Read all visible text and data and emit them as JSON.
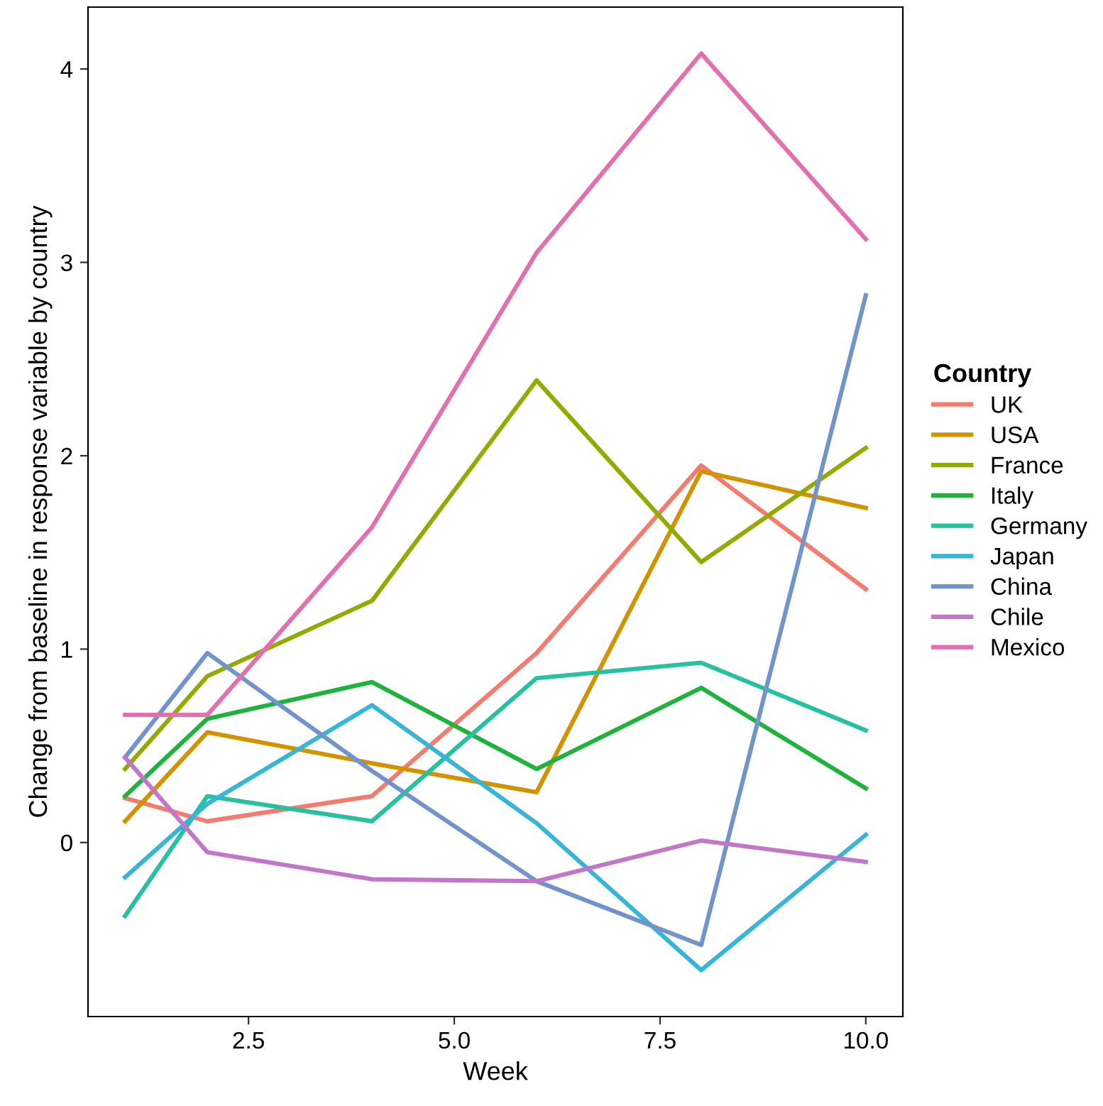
{
  "chart_data": {
    "type": "line",
    "xlabel": "Week",
    "ylabel": "Change from baseline in response variable by country",
    "legend_title": "Country",
    "legend": "right",
    "grid": false,
    "marker": "none",
    "line_style": "solid",
    "x": [
      1,
      2,
      4,
      6,
      8,
      10
    ],
    "xlim": [
      0.55,
      10.45
    ],
    "xticks": [
      {
        "value": 2.5,
        "label": "2.5"
      },
      {
        "value": 5,
        "label": "5.0"
      },
      {
        "value": 7.5,
        "label": "7.5"
      },
      {
        "value": 10,
        "label": "10.0"
      }
    ],
    "ylim": [
      -0.9,
      4.32
    ],
    "yticks": [
      0,
      1,
      2,
      3,
      4
    ],
    "series": [
      {
        "name": "UK",
        "color": "#f47c6e",
        "values": [
          0.23,
          0.11,
          0.24,
          0.98,
          1.95,
          1.31
        ]
      },
      {
        "name": "USA",
        "color": "#d39200",
        "values": [
          0.11,
          0.57,
          0.41,
          0.26,
          1.92,
          1.73
        ]
      },
      {
        "name": "France",
        "color": "#93aa00",
        "values": [
          0.38,
          0.86,
          1.25,
          2.39,
          1.45,
          2.04
        ]
      },
      {
        "name": "Italy",
        "color": "#1fb33e",
        "values": [
          0.24,
          0.64,
          0.83,
          0.38,
          0.8,
          0.28
        ]
      },
      {
        "name": "Germany",
        "color": "#25c1a0",
        "values": [
          -0.38,
          0.24,
          0.11,
          0.85,
          0.93,
          0.58
        ]
      },
      {
        "name": "Japan",
        "color": "#36b5d8",
        "values": [
          -0.18,
          0.2,
          0.71,
          0.1,
          -0.66,
          0.04
        ]
      },
      {
        "name": "China",
        "color": "#7094cb",
        "values": [
          0.44,
          0.98,
          0.37,
          -0.2,
          -0.53,
          2.83
        ]
      },
      {
        "name": "Chile",
        "color": "#c276c9",
        "values": [
          0.44,
          -0.05,
          -0.19,
          -0.2,
          0.01,
          -0.1
        ]
      },
      {
        "name": "Mexico",
        "color": "#e46fae",
        "values": [
          0.66,
          0.66,
          1.63,
          3.05,
          4.08,
          3.12
        ]
      }
    ]
  }
}
